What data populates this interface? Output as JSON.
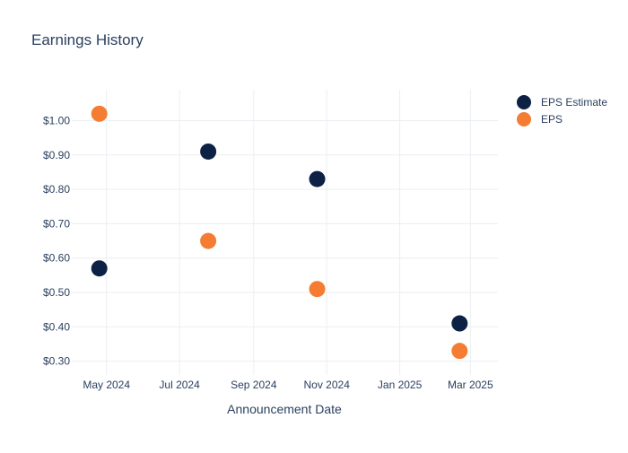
{
  "chart_data": {
    "type": "scatter",
    "title": "Earnings History",
    "xlabel": "Announcement Date",
    "ylabel": "",
    "x_axis_type": "date",
    "xlim": [
      "2024-04-02",
      "2025-03-24"
    ],
    "ylim": [
      0.26,
      1.09
    ],
    "x_ticks": [
      {
        "date": "2024-05-01",
        "label": "May 2024"
      },
      {
        "date": "2024-07-01",
        "label": "Jul 2024"
      },
      {
        "date": "2024-09-01",
        "label": "Sep 2024"
      },
      {
        "date": "2024-11-01",
        "label": "Nov 2024"
      },
      {
        "date": "2025-01-01",
        "label": "Jan 2025"
      },
      {
        "date": "2025-03-01",
        "label": "Mar 2025"
      }
    ],
    "y_ticks": [
      {
        "value": 0.3,
        "label": "$0.30"
      },
      {
        "value": 0.4,
        "label": "$0.40"
      },
      {
        "value": 0.5,
        "label": "$0.50"
      },
      {
        "value": 0.6,
        "label": "$0.60"
      },
      {
        "value": 0.7,
        "label": "$0.70"
      },
      {
        "value": 0.8,
        "label": "$0.80"
      },
      {
        "value": 0.9,
        "label": "$0.90"
      },
      {
        "value": 1.0,
        "label": "$1.00"
      }
    ],
    "grid": true,
    "legend_position": "top-right",
    "series": [
      {
        "name": "EPS Estimate",
        "color": "#0c2144",
        "points": [
          {
            "x": "2024-04-25",
            "y": 0.57
          },
          {
            "x": "2024-07-25",
            "y": 0.91
          },
          {
            "x": "2024-10-24",
            "y": 0.83
          },
          {
            "x": "2025-02-20",
            "y": 0.41
          }
        ]
      },
      {
        "name": "EPS",
        "color": "#f47d33",
        "points": [
          {
            "x": "2024-04-25",
            "y": 1.02
          },
          {
            "x": "2024-07-25",
            "y": 0.65
          },
          {
            "x": "2024-10-24",
            "y": 0.51
          },
          {
            "x": "2025-02-20",
            "y": 0.33
          }
        ]
      }
    ]
  }
}
